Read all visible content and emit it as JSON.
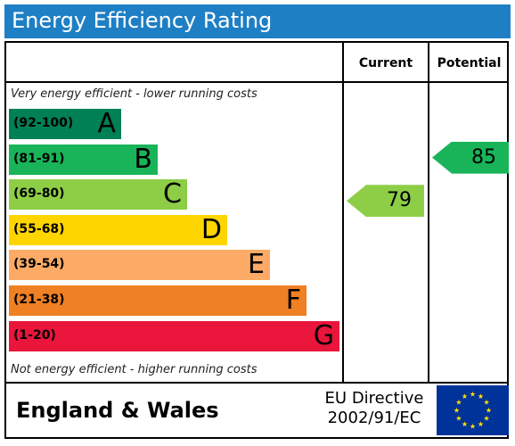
{
  "chart_data": {
    "type": "bar",
    "title": "Energy Efficiency Rating",
    "column_headers": {
      "current": "Current",
      "potential": "Potential"
    },
    "top_note": "Very energy efficient - lower running costs",
    "bottom_note": "Not energy efficient - higher running costs",
    "bands": [
      {
        "range": "(92-100)",
        "letter": "A",
        "color": "#008054",
        "text_color": "#000000",
        "relative_length": 0.34
      },
      {
        "range": "(81-91)",
        "letter": "B",
        "color": "#19b459",
        "text_color": "#000000",
        "relative_length": 0.45
      },
      {
        "range": "(69-80)",
        "letter": "C",
        "color": "#8dce46",
        "text_color": "#000000",
        "relative_length": 0.54
      },
      {
        "range": "(55-68)",
        "letter": "D",
        "color": "#ffd500",
        "text_color": "#000000",
        "relative_length": 0.66
      },
      {
        "range": "(39-54)",
        "letter": "E",
        "color": "#fcaa65",
        "text_color": "#000000",
        "relative_length": 0.79
      },
      {
        "range": "(21-38)",
        "letter": "F",
        "color": "#ef8023",
        "text_color": "#000000",
        "relative_length": 0.9
      },
      {
        "range": "(1-20)",
        "letter": "G",
        "color": "#e9153b",
        "text_color": "#000000",
        "relative_length": 1.0
      }
    ],
    "current": {
      "value": 79,
      "label": "79",
      "band": "C",
      "color": "#8dce46"
    },
    "potential": {
      "value": 85,
      "label": "85",
      "band": "B",
      "color": "#19b459"
    }
  },
  "footer": {
    "region": "England & Wales",
    "directive_line1": "EU Directive",
    "directive_line2": "2002/91/EC",
    "flag_color": "#003399",
    "star_color": "#ffdd00"
  }
}
